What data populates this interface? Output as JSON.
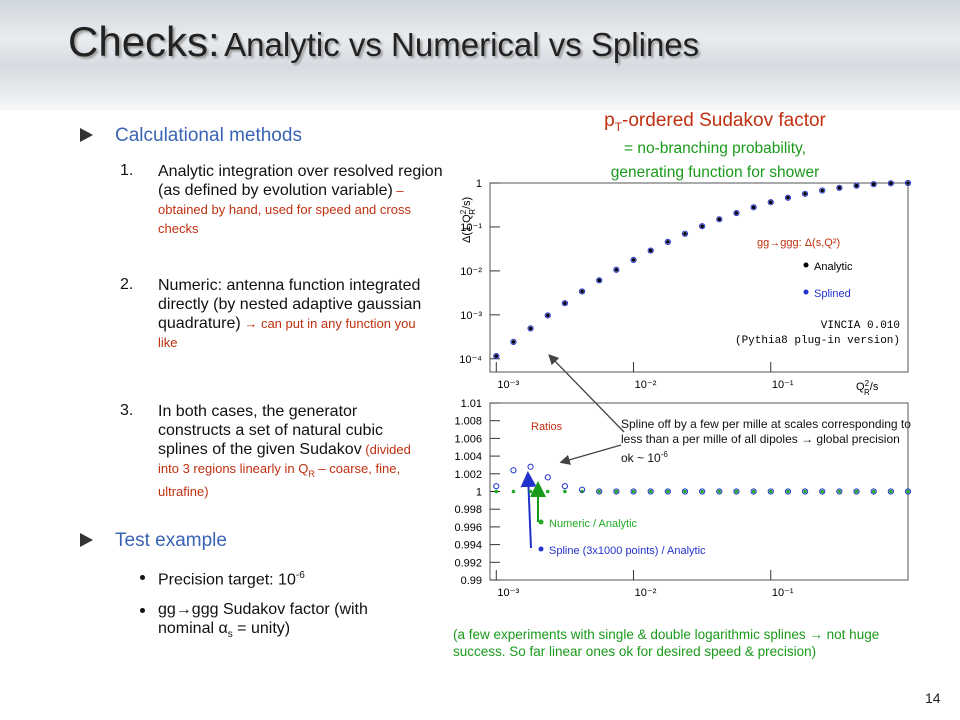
{
  "header": {
    "title": "Checks:",
    "subtitle": "Analytic vs Numerical vs Splines"
  },
  "left": {
    "methods": {
      "heading": "Calculational methods",
      "items": [
        {
          "number": "1.",
          "text": "Analytic integration over resolved region (as defined by evolution variable)",
          "note": " – obtained by hand, used for speed and cross checks"
        },
        {
          "number": "2.",
          "text": "Numeric: antenna function integrated directly (by nested adaptive gaussian quadrature)",
          "note": " → can put in any function you like"
        },
        {
          "number": "3.",
          "text": "In both cases, the generator constructs a set of natural cubic splines of the given Sudakov",
          "note": " (divided into 3 regions linearly in Q",
          "note_sub": "R",
          "note_tail": " – coarse, fine, ultrafine)"
        }
      ]
    },
    "test": {
      "heading": "Test example",
      "items": [
        {
          "text": "Precision target: 10",
          "sup": "-6"
        },
        {
          "text": "gg→ggg Sudakov factor (with nominal α",
          "sub": "s",
          "tail": " = unity)"
        }
      ]
    }
  },
  "right": {
    "heading": {
      "text": "p",
      "sub": "T",
      "tail": "-ordered Sudakov factor"
    },
    "lines": [
      "= no-branching probability,",
      "generating function for shower"
    ],
    "footnote": "(a few experiments with single & double logarithmic splines → not huge success. So far linear ones ok for desired speed & precision)"
  },
  "page_number": "14",
  "chart_data": [
    {
      "type": "scatter",
      "xscale": "log",
      "yscale": "log",
      "x": [
        0.001,
        0.001334,
        0.001778,
        0.002371,
        0.003162,
        0.004217,
        0.005623,
        0.007499,
        0.01,
        0.01334,
        0.01778,
        0.02371,
        0.03162,
        0.04217,
        0.05623,
        0.07499,
        0.1,
        0.1334,
        0.1778,
        0.2371,
        0.3162,
        0.4217,
        0.5623,
        0.7499,
        1
      ],
      "xlim": [
        0.0009,
        1
      ],
      "ylim": [
        5e-05,
        1
      ],
      "xticks": [
        {
          "value": 0.001,
          "label": "10⁻³"
        },
        {
          "value": 0.01,
          "label": "10⁻²"
        },
        {
          "value": 0.1,
          "label": "10⁻¹"
        }
      ],
      "yticks": [
        1,
        {
          "value": 0.1,
          "label": "10⁻¹"
        },
        {
          "value": 0.01,
          "label": "10⁻²"
        },
        {
          "value": 0.001,
          "label": "10⁻³"
        },
        {
          "value": 0.0001,
          "label": "10⁻⁴"
        }
      ],
      "x_label": {
        "text": "Q",
        "sup": "2",
        "sub": "R",
        "tail": "/s"
      },
      "y_label": {
        "text": "Δ(1,Q",
        "sup": "2",
        "sub": "R",
        "tail": "/s)"
      },
      "legend_title": "gg→ggg: Δ(s,Q²)",
      "annotations": [
        "VINCIA 0.010",
        "(Pythia8 plug-in version)"
      ],
      "series": [
        {
          "name": "Analytic",
          "color": "#000000",
          "marker": "dot",
          "values": [
            0.000115,
            0.000242,
            0.000491,
            0.000967,
            0.00184,
            0.0034,
            0.0061,
            0.0106,
            0.0178,
            0.029,
            0.0457,
            0.07,
            0.104,
            0.149,
            0.207,
            0.279,
            0.365,
            0.462,
            0.567,
            0.675,
            0.777,
            0.868,
            0.939,
            0.984,
            1
          ]
        },
        {
          "name": "Splined",
          "color": "#2233cc",
          "marker": "circle",
          "values": [
            0.000115,
            0.000242,
            0.000491,
            0.000967,
            0.00184,
            0.0034,
            0.0061,
            0.0106,
            0.0178,
            0.029,
            0.0457,
            0.07,
            0.104,
            0.149,
            0.207,
            0.279,
            0.365,
            0.462,
            0.567,
            0.675,
            0.777,
            0.868,
            0.939,
            0.984,
            1
          ]
        }
      ]
    },
    {
      "type": "scatter",
      "xscale": "log",
      "x": [
        0.001,
        0.001334,
        0.001778,
        0.002371,
        0.003162,
        0.004217,
        0.005623,
        0.007499,
        0.01,
        0.01334,
        0.01778,
        0.02371,
        0.03162,
        0.04217,
        0.05623,
        0.07499,
        0.1,
        0.1334,
        0.1778,
        0.2371,
        0.3162,
        0.4217,
        0.5623,
        0.7499,
        1
      ],
      "xlim": [
        0.0009,
        1
      ],
      "ylim": [
        0.99,
        1.01
      ],
      "xticks": [
        {
          "value": 0.001,
          "label": "10⁻³"
        },
        {
          "value": 0.01,
          "label": "10⁻²"
        },
        {
          "value": 0.1,
          "label": "10⁻¹"
        }
      ],
      "yticks": [
        0.99,
        0.992,
        0.994,
        0.996,
        0.998,
        1,
        1.002,
        1.004,
        1.006,
        1.008,
        1.01
      ],
      "title": "Ratios",
      "annotation": {
        "text": "Spline off by a few per mille at scales corresponding to less than a per mille of all dipoles → global precision ok ~ 10",
        "sup": "-6"
      },
      "series": [
        {
          "name": "Numeric / Analytic",
          "color": "#22aa22",
          "marker": "dot",
          "values": [
            1,
            1,
            1,
            1,
            1,
            1,
            1,
            1,
            1,
            1,
            1,
            1,
            1,
            1,
            1,
            1,
            1,
            1,
            1,
            1,
            1,
            1,
            1,
            1,
            1
          ]
        },
        {
          "name": "Spline (3x1000 points) / Analytic",
          "color": "#2233cc",
          "marker": "circle",
          "values": [
            1.0006,
            1.0024,
            1.0028,
            1.0016,
            1.0006,
            1.0002,
            1,
            1,
            1,
            1,
            1,
            1,
            1,
            1,
            1,
            1,
            1,
            1,
            1,
            1,
            1,
            1,
            1,
            1,
            1
          ]
        }
      ]
    }
  ]
}
